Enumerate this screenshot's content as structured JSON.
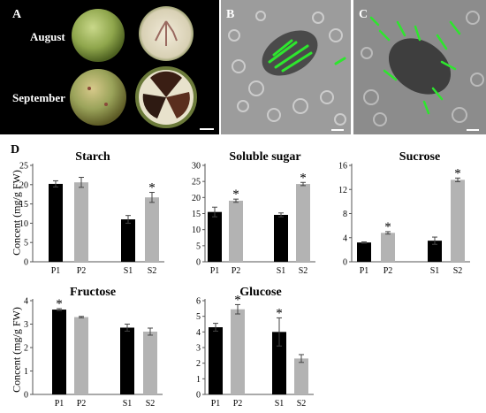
{
  "panels": {
    "A": {
      "letter": "A",
      "row1": "August",
      "row2": "September"
    },
    "B": {
      "letter": "B"
    },
    "C": {
      "letter": "C"
    },
    "D": {
      "letter": "D"
    }
  },
  "ylabel": "Concent (mg/g FW)",
  "colors": {
    "dark_bar": "#000000",
    "light_bar": "#b3b3b3",
    "fluor": "#2ee62e"
  },
  "chart_data": [
    {
      "type": "bar",
      "title": "Starch",
      "categories": [
        "P1",
        "P2",
        "S1",
        "S2"
      ],
      "values": [
        20.2,
        20.6,
        11.0,
        16.7
      ],
      "errors": [
        0.8,
        1.3,
        1.0,
        1.3
      ],
      "significant": [
        false,
        false,
        false,
        true
      ],
      "ylim": [
        0,
        25
      ],
      "yticks": [
        0,
        5,
        10,
        15,
        20,
        25
      ]
    },
    {
      "type": "bar",
      "title": "Soluble sugar",
      "categories": [
        "P1",
        "P2",
        "S1",
        "S2"
      ],
      "values": [
        15.5,
        19.0,
        14.6,
        24.2
      ],
      "errors": [
        1.5,
        0.5,
        0.6,
        0.5
      ],
      "significant": [
        false,
        true,
        false,
        true
      ],
      "ylim": [
        0,
        30
      ],
      "yticks": [
        0,
        5,
        10,
        15,
        20,
        25,
        30
      ]
    },
    {
      "type": "bar",
      "title": "Sucrose",
      "categories": [
        "P1",
        "P2",
        "S1",
        "S2"
      ],
      "values": [
        3.2,
        4.8,
        3.5,
        13.6
      ],
      "errors": [
        0.1,
        0.2,
        0.6,
        0.3
      ],
      "significant": [
        false,
        true,
        false,
        true
      ],
      "ylim": [
        0,
        16
      ],
      "yticks": [
        0,
        4,
        8,
        12,
        16
      ]
    },
    {
      "type": "bar",
      "title": "Fructose",
      "categories": [
        "P1",
        "P2",
        "S1",
        "S2"
      ],
      "values": [
        3.62,
        3.3,
        2.85,
        2.68
      ],
      "errors": [
        0.04,
        0.03,
        0.15,
        0.15
      ],
      "significant": [
        true,
        false,
        false,
        false
      ],
      "ylim": [
        0,
        4
      ],
      "yticks": [
        0,
        1,
        2,
        3,
        4
      ]
    },
    {
      "type": "bar",
      "title": "Glucose",
      "categories": [
        "P1",
        "P2",
        "S1",
        "S2"
      ],
      "values": [
        4.3,
        5.45,
        4.0,
        2.3
      ],
      "errors": [
        0.25,
        0.3,
        0.9,
        0.25
      ],
      "significant": [
        false,
        true,
        true,
        false
      ],
      "ylim": [
        0,
        6
      ],
      "yticks": [
        0,
        1,
        2,
        3,
        4,
        5,
        6
      ]
    }
  ]
}
